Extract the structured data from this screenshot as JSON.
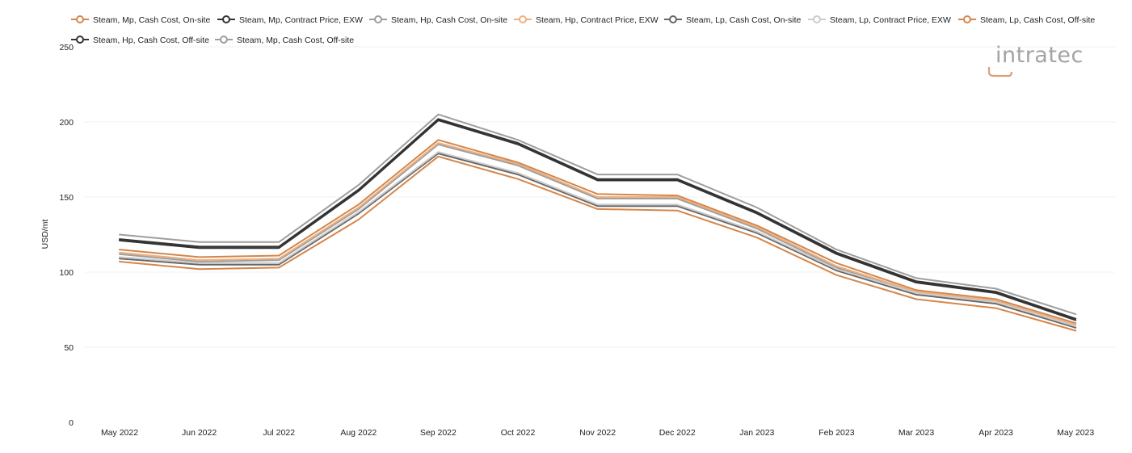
{
  "chart_data": {
    "type": "line",
    "title": "",
    "xlabel": "",
    "ylabel": "USD/mt",
    "ylim": [
      0,
      250
    ],
    "yticks": [
      0,
      50,
      100,
      150,
      200,
      250
    ],
    "grid": true,
    "legend_position": "top",
    "categories": [
      "May 2022",
      "Jun 2022",
      "Jul 2022",
      "Aug 2022",
      "Sep 2022",
      "Oct 2022",
      "Nov 2022",
      "Dec 2022",
      "Jan 2023",
      "Feb 2023",
      "Mar 2023",
      "Apr 2023",
      "May 2023"
    ],
    "series": [
      {
        "name": "Steam, Mp, Cash Cost, On-site",
        "color": "#d4864b",
        "values": [
          115,
          110,
          111,
          145,
          188,
          173,
          152,
          151,
          131,
          106,
          88,
          82,
          66
        ]
      },
      {
        "name": "Steam, Mp, Contract Price, EXW",
        "color": "#333333",
        "values": [
          122,
          117,
          117,
          155,
          202,
          186,
          162,
          162,
          140,
          113,
          94,
          87,
          69
        ]
      },
      {
        "name": "Steam, Hp, Cash Cost, On-site",
        "color": "#9e9e9e",
        "values": [
          112,
          107,
          108,
          142,
          185,
          171,
          149,
          149,
          129,
          103,
          86,
          80,
          64
        ]
      },
      {
        "name": "Steam, Hp, Contract Price, EXW",
        "color": "#ecb081",
        "values": [
          113,
          108,
          109,
          143,
          186,
          172,
          150,
          150,
          130,
          104,
          87,
          81,
          65
        ]
      },
      {
        "name": "Steam, Lp, Cash Cost, On-site",
        "color": "#666666",
        "values": [
          109,
          105,
          105,
          139,
          179,
          165,
          144,
          144,
          126,
          101,
          85,
          79,
          63
        ]
      },
      {
        "name": "Steam, Lp, Contract Price, EXW",
        "color": "#cccccc",
        "values": [
          110,
          106,
          106,
          140,
          180,
          166,
          145,
          145,
          127,
          102,
          86,
          80,
          64
        ]
      },
      {
        "name": "Steam, Lp, Cash Cost, Off-site",
        "color": "#d4864b",
        "values": [
          107,
          102,
          103,
          135,
          177,
          162,
          142,
          141,
          123,
          98,
          82,
          76,
          61
        ]
      },
      {
        "name": "Steam, Hp, Cash Cost, Off-site",
        "color": "#333333",
        "values": [
          121,
          116,
          116,
          154,
          201,
          185,
          161,
          161,
          139,
          112,
          93,
          86,
          68
        ]
      },
      {
        "name": "Steam, Mp, Cash Cost, Off-site",
        "color": "#9e9e9e",
        "values": [
          125,
          120,
          120,
          158,
          205,
          188,
          165,
          165,
          143,
          115,
          96,
          89,
          72
        ]
      }
    ]
  },
  "logo": {
    "text": "intratec"
  }
}
